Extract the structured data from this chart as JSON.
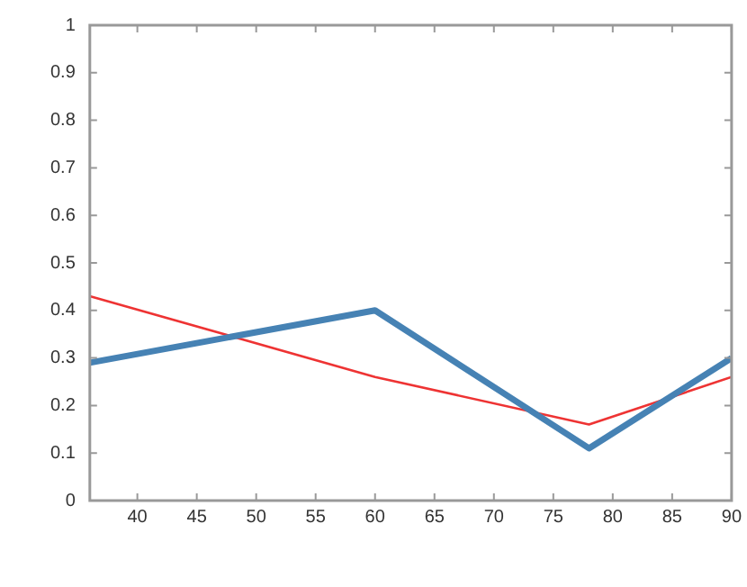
{
  "chart_data": {
    "type": "line",
    "x": [
      36,
      60,
      78,
      90
    ],
    "series": [
      {
        "color": "#4682b4",
        "values": [
          0.29,
          0.4,
          0.11,
          0.3
        ]
      },
      {
        "color": "#ee3333",
        "values": [
          0.43,
          0.26,
          0.16,
          0.26
        ]
      }
    ],
    "xlim": [
      36,
      90
    ],
    "xticks": [
      40,
      45,
      50,
      55,
      60,
      65,
      70,
      75,
      80,
      85,
      90
    ],
    "ylim": [
      0,
      1
    ],
    "yticks": [
      0,
      0.1,
      0.2,
      0.3,
      0.4,
      0.5,
      0.6,
      0.7,
      0.8,
      0.9,
      1
    ],
    "grid": false,
    "legend": false,
    "marker": "none",
    "line_style": "solid"
  }
}
